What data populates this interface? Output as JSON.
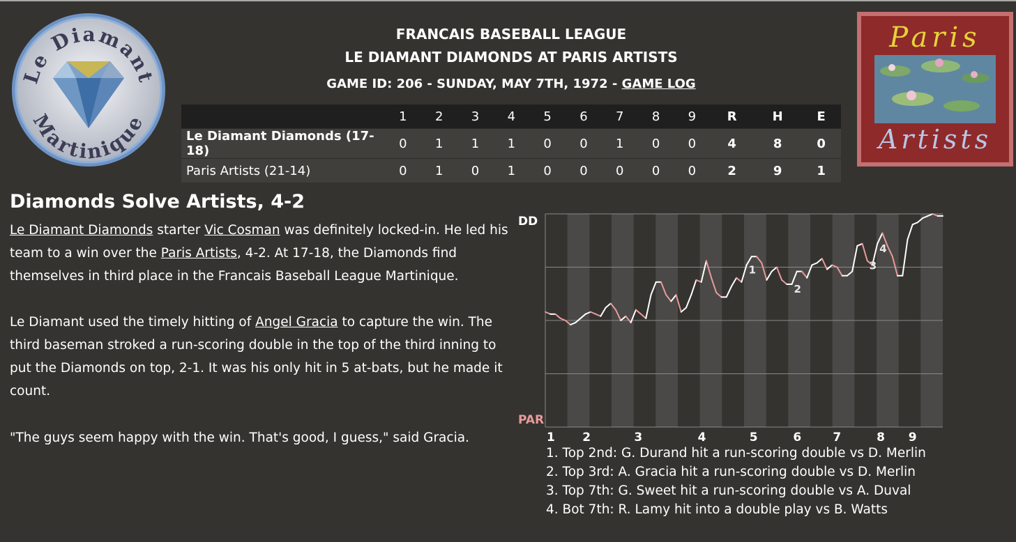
{
  "header": {
    "league": "FRANCAIS BASEBALL LEAGUE",
    "matchup": "LE DIAMANT DIAMONDS AT PARIS ARTISTS",
    "game_info": "GAME ID: 206 - SUNDAY, MAY 7TH, 1972 - ",
    "game_log_link": "GAME LOG"
  },
  "logos": {
    "left": {
      "top_text": "Le Diamant",
      "bottom_text": "Martinique"
    },
    "right": {
      "top_text": "Paris",
      "bottom_text": "Artists"
    }
  },
  "linescore": {
    "innings": [
      "1",
      "2",
      "3",
      "4",
      "5",
      "6",
      "7",
      "8",
      "9"
    ],
    "totals_headers": [
      "R",
      "H",
      "E"
    ],
    "teams": [
      {
        "name": "Le Diamant Diamonds (17-18)",
        "innings": [
          "0",
          "1",
          "1",
          "1",
          "0",
          "0",
          "1",
          "0",
          "0"
        ],
        "totals": [
          "4",
          "8",
          "0"
        ]
      },
      {
        "name": "Paris Artists (21-14)",
        "innings": [
          "0",
          "1",
          "0",
          "1",
          "0",
          "0",
          "0",
          "0",
          "0"
        ],
        "totals": [
          "2",
          "9",
          "1"
        ]
      }
    ]
  },
  "story": {
    "headline": "Diamonds Solve Artists, 4-2",
    "p1": {
      "link1": "Le Diamant Diamonds",
      "t1": " starter ",
      "link2": "Vic Cosman",
      "t2": " was definitely locked-in. He led his team to a win over the ",
      "link3": "Paris Artists",
      "t3": ", 4-2. At 17-18, the Diamonds find themselves in third place in the Francais Baseball League Martinique."
    },
    "p2": {
      "t1": "Le Diamant used the timely hitting of ",
      "link1": "Angel Gracia",
      "t2": " to capture the win. The third baseman stroked a run-scoring double in the top of the third inning to put the Diamonds on top, 2-1. It was his only hit in 5 at-bats, but he made it count."
    },
    "p3": "\"The guys seem happy with the win. That's good, I guess,\" said Gracia."
  },
  "chart_data": {
    "type": "line",
    "top_label": "DD",
    "bottom_label": "PAR",
    "inning_labels": [
      "1",
      "2",
      "3",
      "4",
      "5",
      "6",
      "7",
      "8",
      "9"
    ],
    "ylim": [
      0,
      1
    ],
    "gridlines": [
      0.25,
      0.5,
      0.75
    ],
    "colors": {
      "up": "#ffffff",
      "down": "#e89a9a",
      "stripe": "#4a4947",
      "bottom_label": "#e89a9a"
    },
    "series": [
      {
        "values": [
          0.54,
          0.53,
          0.53,
          0.51,
          0.5,
          0.48,
          0.49,
          0.51,
          0.53,
          0.54,
          0.53,
          0.52,
          0.56,
          0.58,
          0.55,
          0.5,
          0.52,
          0.49,
          0.55,
          0.53,
          0.51,
          0.62,
          0.68,
          0.68,
          0.62,
          0.59,
          0.62,
          0.54,
          0.56,
          0.62,
          0.69,
          0.68,
          0.78,
          0.7,
          0.63,
          0.61,
          0.61,
          0.66,
          0.7,
          0.68,
          0.76,
          0.8,
          0.8,
          0.77,
          0.69,
          0.73,
          0.75,
          0.69,
          0.67,
          0.67,
          0.73,
          0.73,
          0.7,
          0.76,
          0.77,
          0.79,
          0.74,
          0.76,
          0.75,
          0.71,
          0.71,
          0.73,
          0.85,
          0.86,
          0.78,
          0.76,
          0.86,
          0.91,
          0.85,
          0.8,
          0.71,
          0.71,
          0.88,
          0.95,
          0.96,
          0.98,
          0.99,
          1.0,
          0.99,
          0.99
        ]
      }
    ],
    "annotations": [
      {
        "label": "1",
        "at": 0.5
      },
      {
        "label": "2",
        "at": 0.62
      },
      {
        "label": "3",
        "at": 0.81
      },
      {
        "label": "4",
        "at": 0.84
      }
    ]
  },
  "play_notes": [
    "1. Top 2nd: G. Durand hit a run-scoring double vs D. Merlin",
    "2. Top 3rd: A. Gracia hit a run-scoring double vs D. Merlin",
    "3. Top 7th: G. Sweet hit a run-scoring double vs A. Duval",
    "4. Bot 7th: R. Lamy hit into a double play vs B. Watts"
  ]
}
